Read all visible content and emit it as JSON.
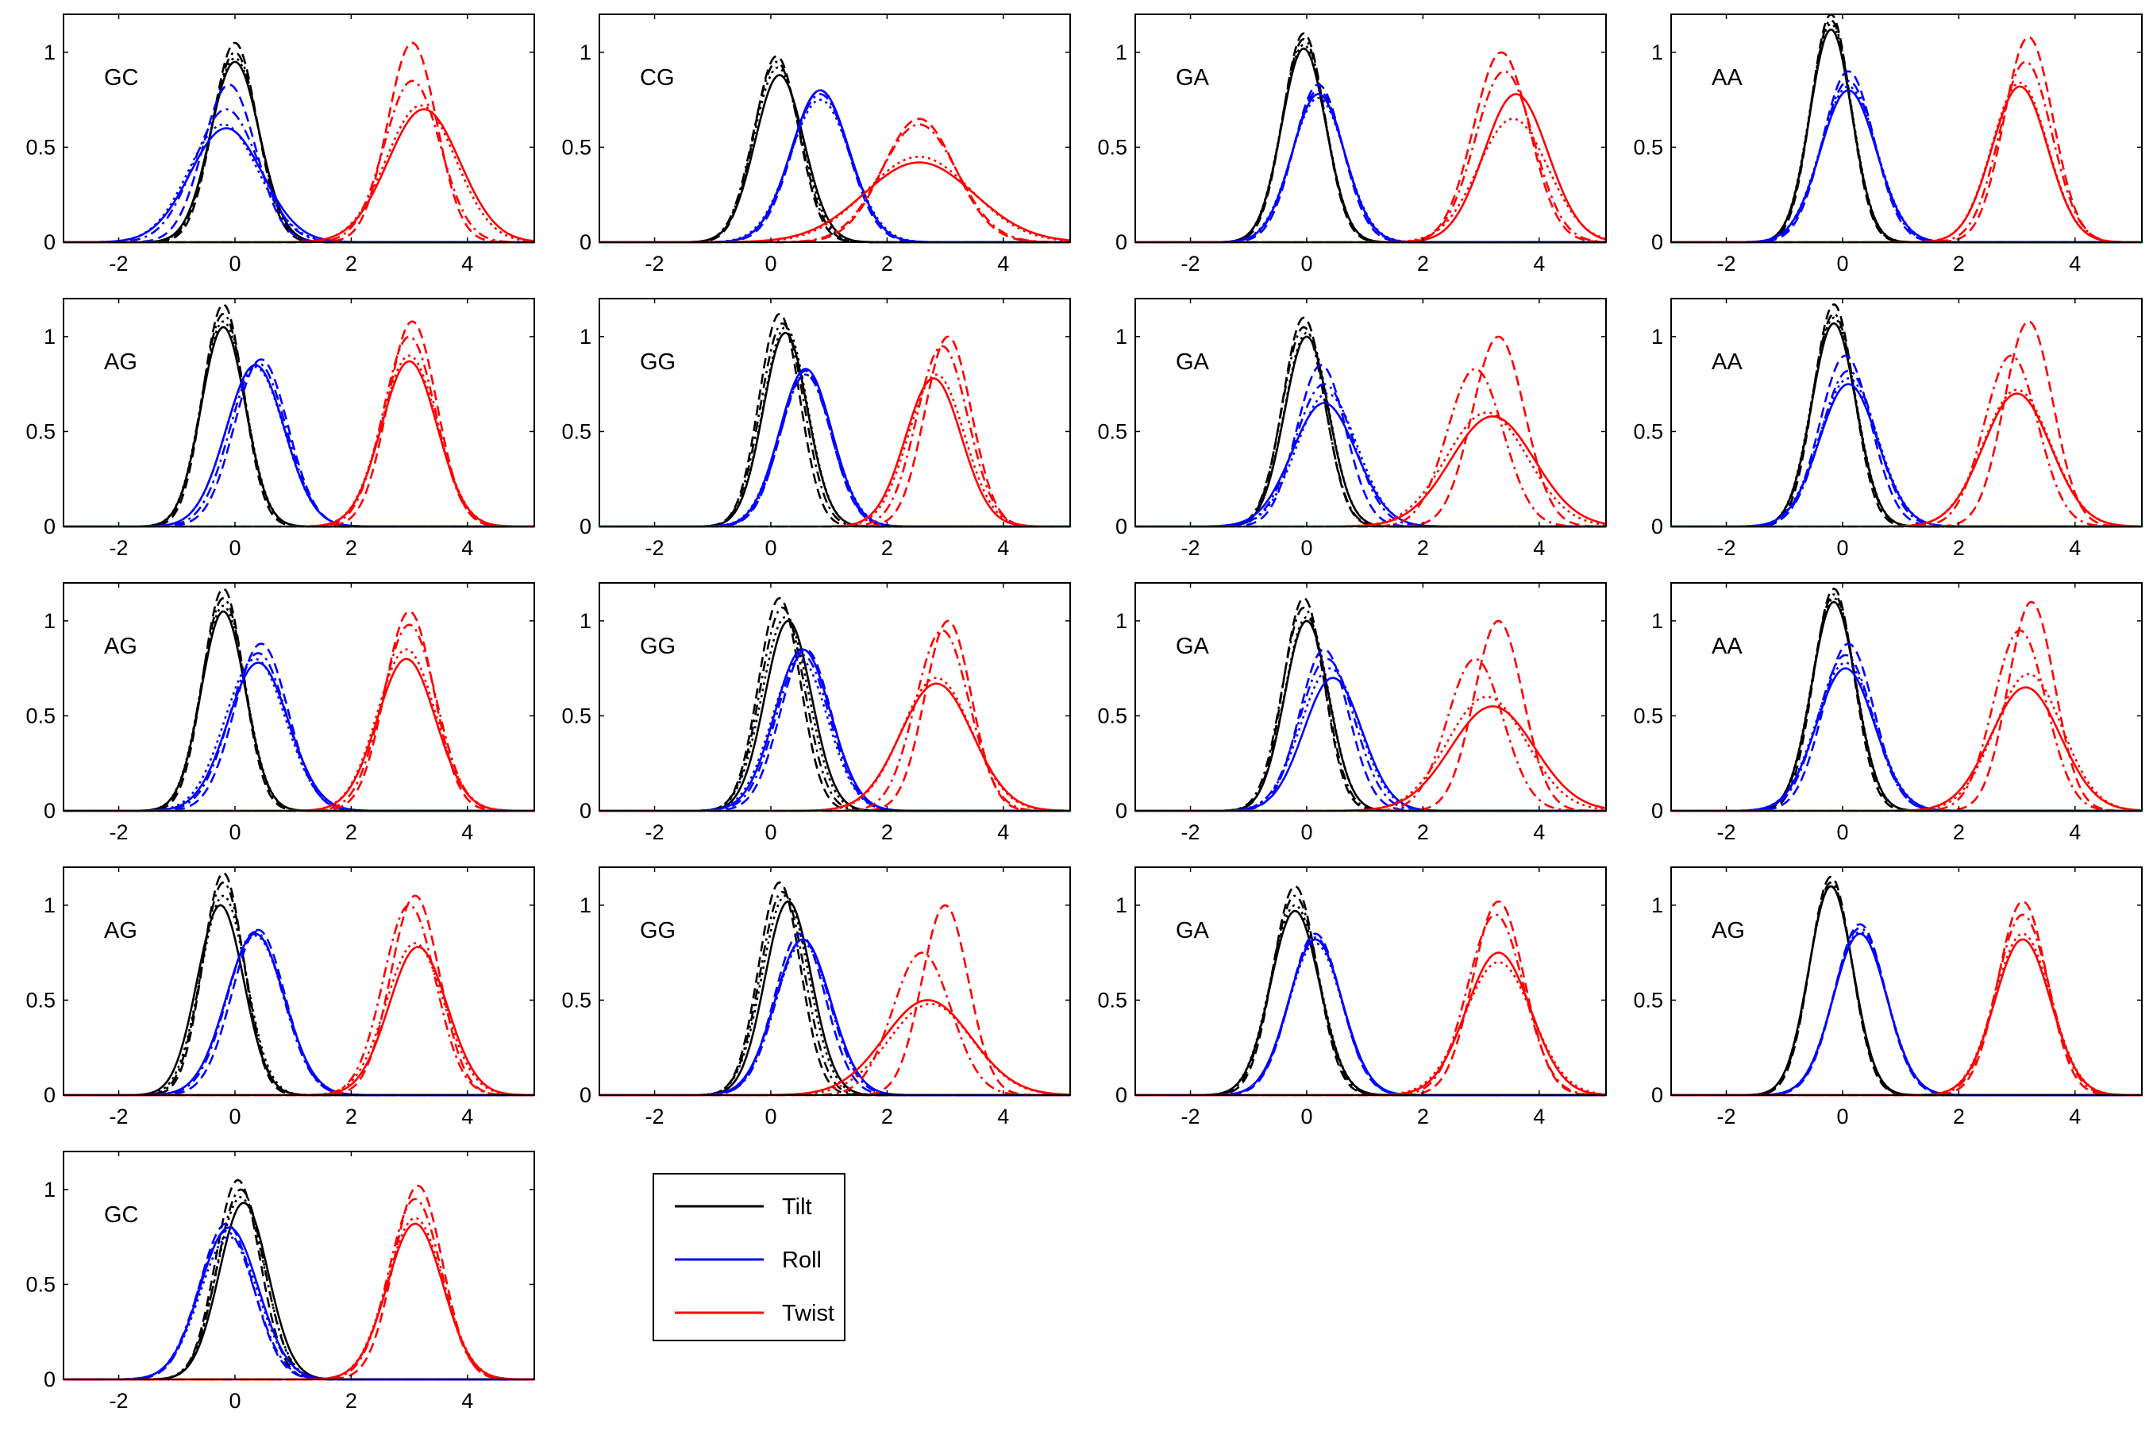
{
  "chart_data": {
    "type": "line",
    "shared_axes": {
      "xlim": [
        -2.95,
        5.15
      ],
      "ylim": [
        0,
        1.2
      ],
      "xticks": [
        -2,
        0,
        2,
        4
      ],
      "xtick_labels": [
        "-2",
        "0",
        "2",
        "4"
      ],
      "yticks": [
        0,
        0.5,
        1
      ],
      "ytick_labels": [
        "0",
        "0.5",
        "1"
      ],
      "grid": false
    },
    "legend": {
      "placement": "bottom-center",
      "entries": [
        {
          "label": "Tilt",
          "color": "#000000"
        },
        {
          "label": "Roll",
          "color": "#0000ff"
        },
        {
          "label": "Twist",
          "color": "#ff0000"
        }
      ]
    },
    "line_styles": [
      "solid",
      "dashed",
      "dashdot",
      "dotted"
    ],
    "panels": [
      {
        "label": "GC",
        "tilt": {
          "mu": [
            0,
            0,
            0,
            0
          ],
          "h": [
            0.95,
            1.05,
            1.0,
            0.97
          ],
          "s": [
            0.42,
            0.38,
            0.4,
            0.41
          ]
        },
        "roll": {
          "mu": [
            -0.15,
            -0.1,
            -0.15,
            -0.2
          ],
          "h": [
            0.6,
            0.83,
            0.7,
            0.62
          ],
          "s": [
            0.62,
            0.45,
            0.55,
            0.6
          ]
        },
        "twist": {
          "mu": [
            3.25,
            3.05,
            3.05,
            3.2
          ],
          "h": [
            0.7,
            1.05,
            0.85,
            0.72
          ],
          "s": [
            0.62,
            0.42,
            0.48,
            0.6
          ]
        }
      },
      {
        "label": "CG",
        "tilt": {
          "mu": [
            0.15,
            0.1,
            0.1,
            0.12
          ],
          "h": [
            0.88,
            0.98,
            0.95,
            0.92
          ],
          "s": [
            0.42,
            0.38,
            0.4,
            0.41
          ]
        },
        "roll": {
          "mu": [
            0.85,
            0.85,
            0.85,
            0.85
          ],
          "h": [
            0.8,
            0.8,
            0.78,
            0.75
          ],
          "s": [
            0.5,
            0.48,
            0.5,
            0.52
          ]
        },
        "twist": {
          "mu": [
            2.55,
            2.55,
            2.55,
            2.55
          ],
          "h": [
            0.42,
            0.65,
            0.62,
            0.45
          ],
          "s": [
            0.95,
            0.62,
            0.65,
            0.9
          ]
        }
      },
      {
        "label": "GA",
        "tilt": {
          "mu": [
            -0.05,
            -0.05,
            -0.05,
            -0.05
          ],
          "h": [
            1.02,
            1.1,
            1.07,
            1.04
          ],
          "s": [
            0.38,
            0.36,
            0.37,
            0.38
          ]
        },
        "roll": {
          "mu": [
            0.2,
            0.2,
            0.2,
            0.2
          ],
          "h": [
            0.78,
            0.83,
            0.8,
            0.76
          ],
          "s": [
            0.45,
            0.42,
            0.44,
            0.46
          ]
        },
        "twist": {
          "mu": [
            3.6,
            3.35,
            3.4,
            3.55
          ],
          "h": [
            0.78,
            1.0,
            0.9,
            0.65
          ],
          "s": [
            0.55,
            0.48,
            0.5,
            0.6
          ]
        }
      },
      {
        "label": "AA",
        "tilt": {
          "mu": [
            -0.2,
            -0.2,
            -0.2,
            -0.2
          ],
          "h": [
            1.12,
            1.2,
            1.17,
            1.15
          ],
          "s": [
            0.36,
            0.34,
            0.35,
            0.36
          ]
        },
        "roll": {
          "mu": [
            0.1,
            0.1,
            0.1,
            0.1
          ],
          "h": [
            0.8,
            0.9,
            0.85,
            0.82
          ],
          "s": [
            0.48,
            0.44,
            0.46,
            0.48
          ]
        },
        "twist": {
          "mu": [
            3.05,
            3.2,
            3.15,
            3.05
          ],
          "h": [
            0.82,
            1.08,
            0.95,
            0.84
          ],
          "s": [
            0.48,
            0.42,
            0.45,
            0.48
          ]
        }
      },
      {
        "label": "AG",
        "tilt": {
          "mu": [
            -0.2,
            -0.2,
            -0.2,
            -0.2
          ],
          "h": [
            1.05,
            1.17,
            1.12,
            1.08
          ],
          "s": [
            0.38,
            0.35,
            0.37,
            0.38
          ]
        },
        "roll": {
          "mu": [
            0.35,
            0.45,
            0.4,
            0.35
          ],
          "h": [
            0.85,
            0.88,
            0.86,
            0.84
          ],
          "s": [
            0.5,
            0.46,
            0.48,
            0.5
          ]
        },
        "twist": {
          "mu": [
            3.0,
            3.05,
            3.0,
            3.0
          ],
          "h": [
            0.87,
            1.08,
            1.0,
            0.9
          ],
          "s": [
            0.48,
            0.42,
            0.45,
            0.48
          ]
        }
      },
      {
        "label": "GG",
        "tilt": {
          "mu": [
            0.25,
            0.15,
            0.2,
            0.25
          ],
          "h": [
            1.02,
            1.12,
            1.07,
            1.05
          ],
          "s": [
            0.38,
            0.35,
            0.37,
            0.38
          ]
        },
        "roll": {
          "mu": [
            0.6,
            0.6,
            0.6,
            0.6
          ],
          "h": [
            0.83,
            0.82,
            0.8,
            0.8
          ],
          "s": [
            0.45,
            0.43,
            0.44,
            0.46
          ]
        },
        "twist": {
          "mu": [
            2.8,
            3.05,
            2.95,
            2.85
          ],
          "h": [
            0.78,
            1.0,
            0.95,
            0.8
          ],
          "s": [
            0.48,
            0.4,
            0.44,
            0.48
          ]
        }
      },
      {
        "label": "GA",
        "tilt": {
          "mu": [
            0,
            -0.05,
            -0.05,
            0
          ],
          "h": [
            1.0,
            1.1,
            1.05,
            1.02
          ],
          "s": [
            0.38,
            0.36,
            0.37,
            0.38
          ]
        },
        "roll": {
          "mu": [
            0.3,
            0.25,
            0.3,
            0.35
          ],
          "h": [
            0.65,
            0.85,
            0.75,
            0.7
          ],
          "s": [
            0.55,
            0.42,
            0.5,
            0.52
          ]
        },
        "twist": {
          "mu": [
            3.2,
            3.3,
            2.9,
            3.1
          ],
          "h": [
            0.58,
            1.0,
            0.83,
            0.6
          ],
          "s": [
            0.72,
            0.45,
            0.48,
            0.7
          ]
        }
      },
      {
        "label": "AA",
        "tilt": {
          "mu": [
            -0.15,
            -0.15,
            -0.15,
            -0.15
          ],
          "h": [
            1.07,
            1.17,
            1.12,
            1.1
          ],
          "s": [
            0.38,
            0.35,
            0.37,
            0.38
          ]
        },
        "roll": {
          "mu": [
            0.1,
            0.05,
            0.1,
            0.1
          ],
          "h": [
            0.75,
            0.9,
            0.82,
            0.78
          ],
          "s": [
            0.5,
            0.44,
            0.47,
            0.5
          ]
        },
        "twist": {
          "mu": [
            3.0,
            3.2,
            2.9,
            3.0
          ],
          "h": [
            0.7,
            1.08,
            0.9,
            0.72
          ],
          "s": [
            0.58,
            0.42,
            0.46,
            0.58
          ]
        }
      },
      {
        "label": "AG",
        "tilt": {
          "mu": [
            -0.2,
            -0.2,
            -0.2,
            -0.2
          ],
          "h": [
            1.05,
            1.17,
            1.12,
            1.08
          ],
          "s": [
            0.38,
            0.35,
            0.37,
            0.38
          ]
        },
        "roll": {
          "mu": [
            0.4,
            0.45,
            0.4,
            0.35
          ],
          "h": [
            0.78,
            0.88,
            0.83,
            0.8
          ],
          "s": [
            0.52,
            0.46,
            0.49,
            0.52
          ]
        },
        "twist": {
          "mu": [
            2.95,
            3.0,
            3.0,
            2.95
          ],
          "h": [
            0.8,
            1.05,
            0.98,
            0.85
          ],
          "s": [
            0.5,
            0.42,
            0.46,
            0.5
          ]
        }
      },
      {
        "label": "GG",
        "tilt": {
          "mu": [
            0.3,
            0.15,
            0.2,
            0.25
          ],
          "h": [
            1.0,
            1.12,
            1.07,
            1.02
          ],
          "s": [
            0.4,
            0.36,
            0.38,
            0.4
          ]
        },
        "roll": {
          "mu": [
            0.55,
            0.6,
            0.55,
            0.5
          ],
          "h": [
            0.85,
            0.85,
            0.82,
            0.8
          ],
          "s": [
            0.48,
            0.44,
            0.46,
            0.48
          ]
        },
        "twist": {
          "mu": [
            2.85,
            3.05,
            2.95,
            2.85
          ],
          "h": [
            0.67,
            1.0,
            0.95,
            0.7
          ],
          "s": [
            0.62,
            0.4,
            0.46,
            0.6
          ]
        }
      },
      {
        "label": "GA",
        "tilt": {
          "mu": [
            0,
            -0.05,
            -0.05,
            0
          ],
          "h": [
            1.0,
            1.12,
            1.07,
            1.02
          ],
          "s": [
            0.38,
            0.35,
            0.37,
            0.38
          ]
        },
        "roll": {
          "mu": [
            0.45,
            0.3,
            0.35,
            0.4
          ],
          "h": [
            0.7,
            0.85,
            0.8,
            0.75
          ],
          "s": [
            0.5,
            0.42,
            0.47,
            0.5
          ]
        },
        "twist": {
          "mu": [
            3.2,
            3.3,
            2.9,
            3.1
          ],
          "h": [
            0.55,
            1.0,
            0.8,
            0.6
          ],
          "s": [
            0.72,
            0.42,
            0.48,
            0.68
          ]
        }
      },
      {
        "label": "AA",
        "tilt": {
          "mu": [
            -0.15,
            -0.15,
            -0.15,
            -0.15
          ],
          "h": [
            1.1,
            1.17,
            1.14,
            1.12
          ],
          "s": [
            0.38,
            0.35,
            0.37,
            0.38
          ]
        },
        "roll": {
          "mu": [
            0.05,
            0.1,
            0.05,
            0.05
          ],
          "h": [
            0.75,
            0.88,
            0.82,
            0.78
          ],
          "s": [
            0.5,
            0.44,
            0.47,
            0.5
          ]
        },
        "twist": {
          "mu": [
            3.15,
            3.25,
            3.05,
            3.2
          ],
          "h": [
            0.65,
            1.1,
            0.95,
            0.72
          ],
          "s": [
            0.6,
            0.4,
            0.45,
            0.58
          ]
        }
      },
      {
        "label": "AG",
        "tilt": {
          "mu": [
            -0.25,
            -0.2,
            -0.2,
            -0.2
          ],
          "h": [
            1.0,
            1.17,
            1.12,
            1.05
          ],
          "s": [
            0.4,
            0.35,
            0.37,
            0.39
          ]
        },
        "roll": {
          "mu": [
            0.35,
            0.4,
            0.35,
            0.35
          ],
          "h": [
            0.85,
            0.87,
            0.86,
            0.84
          ],
          "s": [
            0.5,
            0.46,
            0.48,
            0.5
          ]
        },
        "twist": {
          "mu": [
            3.15,
            3.1,
            3.0,
            3.1
          ],
          "h": [
            0.78,
            1.05,
            1.0,
            0.8
          ],
          "s": [
            0.5,
            0.42,
            0.45,
            0.5
          ]
        }
      },
      {
        "label": "GG",
        "tilt": {
          "mu": [
            0.3,
            0.15,
            0.2,
            0.25
          ],
          "h": [
            1.02,
            1.12,
            1.07,
            1.05
          ],
          "s": [
            0.4,
            0.36,
            0.38,
            0.4
          ]
        },
        "roll": {
          "mu": [
            0.55,
            0.5,
            0.55,
            0.55
          ],
          "h": [
            0.82,
            0.85,
            0.82,
            0.8
          ],
          "s": [
            0.48,
            0.44,
            0.46,
            0.48
          ]
        },
        "twist": {
          "mu": [
            2.7,
            3.0,
            2.6,
            2.75
          ],
          "h": [
            0.5,
            1.0,
            0.75,
            0.48
          ],
          "s": [
            0.75,
            0.4,
            0.5,
            0.72
          ]
        }
      },
      {
        "label": "GA",
        "tilt": {
          "mu": [
            -0.2,
            -0.2,
            -0.2,
            -0.2
          ],
          "h": [
            0.97,
            1.1,
            1.05,
            1.0
          ],
          "s": [
            0.42,
            0.38,
            0.4,
            0.42
          ]
        },
        "roll": {
          "mu": [
            0.15,
            0.15,
            0.15,
            0.15
          ],
          "h": [
            0.82,
            0.85,
            0.83,
            0.8
          ],
          "s": [
            0.46,
            0.44,
            0.45,
            0.46
          ]
        },
        "twist": {
          "mu": [
            3.3,
            3.3,
            3.25,
            3.3
          ],
          "h": [
            0.75,
            1.02,
            0.95,
            0.7
          ],
          "s": [
            0.55,
            0.44,
            0.48,
            0.58
          ]
        }
      },
      {
        "label": "AG",
        "tilt": {
          "mu": [
            -0.2,
            -0.2,
            -0.2,
            -0.2
          ],
          "h": [
            1.1,
            1.15,
            1.12,
            1.1
          ],
          "s": [
            0.38,
            0.36,
            0.37,
            0.38
          ]
        },
        "roll": {
          "mu": [
            0.3,
            0.3,
            0.3,
            0.3
          ],
          "h": [
            0.85,
            0.9,
            0.88,
            0.86
          ],
          "s": [
            0.46,
            0.44,
            0.45,
            0.46
          ]
        },
        "twist": {
          "mu": [
            3.1,
            3.1,
            3.1,
            3.1
          ],
          "h": [
            0.82,
            1.02,
            0.95,
            0.85
          ],
          "s": [
            0.48,
            0.42,
            0.45,
            0.48
          ]
        }
      },
      {
        "label": "GC",
        "tilt": {
          "mu": [
            0.15,
            0.05,
            0.1,
            0.1
          ],
          "h": [
            0.93,
            1.05,
            1.0,
            0.96
          ],
          "s": [
            0.42,
            0.38,
            0.4,
            0.41
          ]
        },
        "roll": {
          "mu": [
            -0.1,
            -0.15,
            -0.15,
            -0.1
          ],
          "h": [
            0.8,
            0.82,
            0.78,
            0.75
          ],
          "s": [
            0.5,
            0.46,
            0.48,
            0.5
          ]
        },
        "twist": {
          "mu": [
            3.1,
            3.15,
            3.1,
            3.1
          ],
          "h": [
            0.82,
            1.02,
            0.95,
            0.85
          ],
          "s": [
            0.48,
            0.42,
            0.45,
            0.48
          ]
        }
      }
    ]
  }
}
